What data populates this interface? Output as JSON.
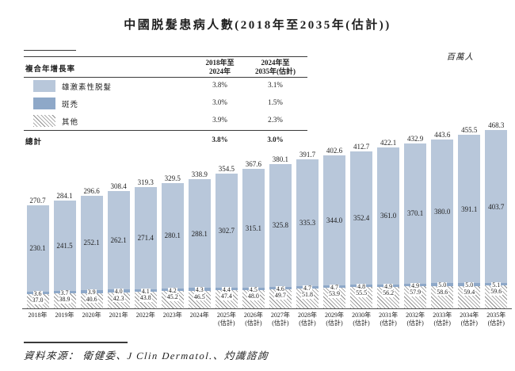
{
  "title": "中國脱髮患病人數(2018年至2035年(估計))",
  "unit_label": "百萬人",
  "cagr_table": {
    "header_label": "複合年增長率",
    "col1_header": [
      "2018年至",
      "2024年"
    ],
    "col2_header": [
      "2024年至",
      "2035年(估計)"
    ],
    "rows": [
      {
        "label": "雄激素性脱髮",
        "swatch": "light-blue",
        "c1": "3.8%",
        "c2": "3.1%"
      },
      {
        "label": "斑禿",
        "swatch": "dark-blue",
        "c1": "3.0%",
        "c2": "1.5%"
      },
      {
        "label": "其他",
        "swatch": "diagonal-hatch",
        "c1": "3.9%",
        "c2": "2.3%"
      }
    ],
    "total": {
      "label": "總計",
      "c1": "3.8%",
      "c2": "3.0%"
    }
  },
  "chart_data": {
    "type": "bar",
    "stacked": true,
    "title": "中國脱髮患病人數(2018年至2035年(估計))",
    "ylabel": "百萬人",
    "ylim": [
      0,
      480
    ],
    "grid": false,
    "legend_position": "table-top-left",
    "categories": [
      "2018年",
      "2019年",
      "2020年",
      "2021年",
      "2022年",
      "2023年",
      "2024年",
      "2025年(估計)",
      "2026年(估計)",
      "2027年(估計)",
      "2028年(估計)",
      "2029年(估計)",
      "2030年(估計)",
      "2031年(估計)",
      "2032年(估計)",
      "2033年(估計)",
      "2034年(估計)",
      "2035年(估計)"
    ],
    "series": [
      {
        "name": "雄激素性脱髮",
        "color": "#b8c7da",
        "values": [
          230.1,
          241.5,
          252.1,
          262.1,
          271.4,
          280.1,
          288.1,
          302.7,
          315.1,
          325.8,
          335.3,
          344.0,
          352.4,
          361.0,
          370.1,
          380.0,
          391.1,
          403.7
        ]
      },
      {
        "name": "斑禿",
        "color": "#8ea8c8",
        "values": [
          3.6,
          3.7,
          3.9,
          4.0,
          4.1,
          4.2,
          4.3,
          4.4,
          4.5,
          4.6,
          4.7,
          4.7,
          4.8,
          4.9,
          4.9,
          5.0,
          5.0,
          5.1
        ]
      },
      {
        "name": "其他",
        "pattern": "diagonal-hatch",
        "values": [
          37.0,
          38.9,
          40.6,
          42.3,
          43.8,
          45.2,
          46.5,
          47.4,
          48.0,
          49.7,
          51.8,
          53.9,
          55.5,
          56.2,
          57.9,
          58.6,
          59.4,
          59.6
        ]
      }
    ],
    "totals": [
      270.7,
      284.1,
      296.6,
      308.4,
      319.3,
      329.5,
      338.9,
      354.5,
      367.6,
      380.1,
      391.7,
      402.6,
      412.7,
      422.1,
      432.9,
      443.6,
      455.5,
      468.3
    ]
  },
  "source": "資料來源： 衛健委、J Clin Dermatol.、灼識諮詢",
  "colors": {
    "bar_light": "#b8c7da",
    "bar_dark": "#8ea8c8",
    "hatch_line": "#8a8a8a",
    "rule": "#3a3a3a",
    "text": "#1e1e1e"
  }
}
